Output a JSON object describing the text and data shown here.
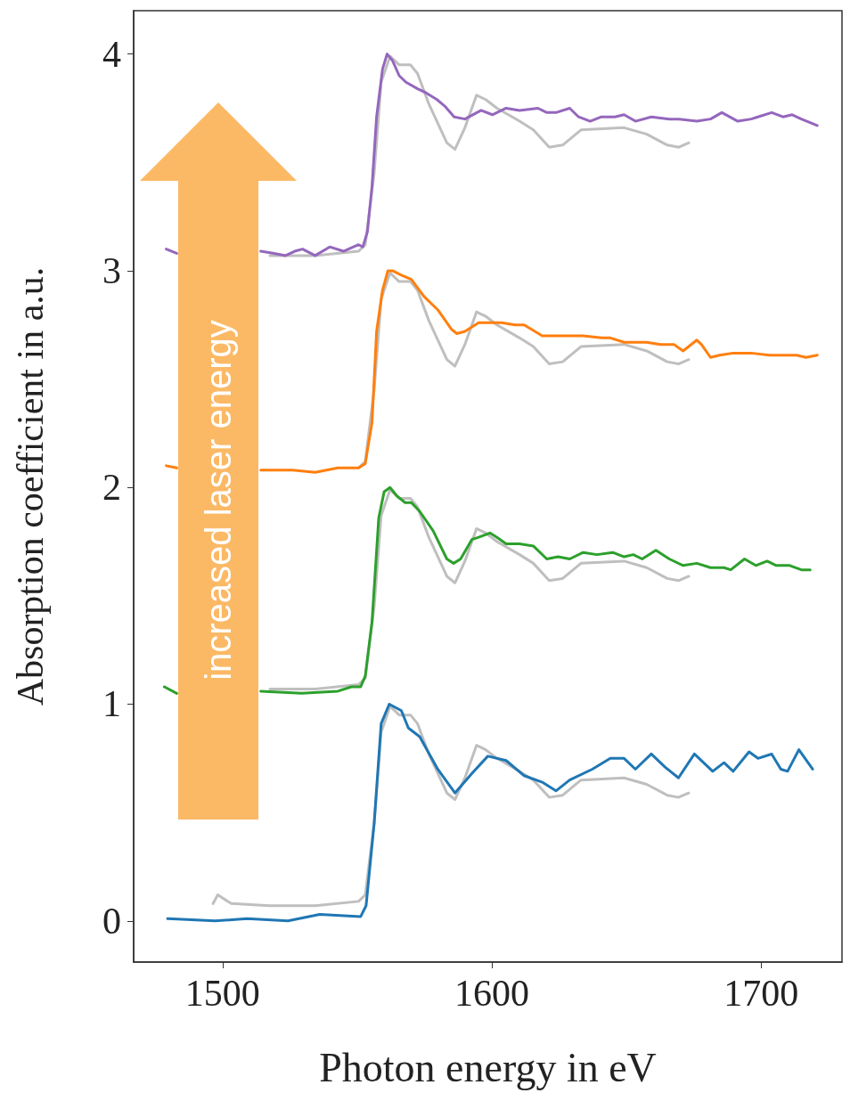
{
  "chart_data": {
    "type": "line",
    "xlabel": "Photon energy in eV",
    "ylabel": "Absorption coefficient in a.u.",
    "xlim": [
      1467,
      1730
    ],
    "ylim": [
      -0.19,
      4.2
    ],
    "xticks": [
      1500,
      1600,
      1700
    ],
    "yticks": [
      0,
      1,
      2,
      3,
      4
    ],
    "grid": false,
    "marker": "none",
    "line_style": "solid",
    "annotations": [
      "increased laser energy"
    ],
    "series": [
      {
        "color": "#bfbfbf",
        "x": [
          1496.5,
          1498.2,
          1503.2,
          1517.6,
          1534.4,
          1550.5,
          1553.0,
          1556.3,
          1558.9,
          1562.2,
          1565.6,
          1569.8,
          1572.4,
          1576.6,
          1583.3,
          1586.3,
          1590.0,
          1594.3,
          1597.7,
          1601.9,
          1610.3,
          1615.4,
          1621.3,
          1626.3,
          1633.1,
          1649.1,
          1657.5,
          1665.1,
          1669.3,
          1673.1
        ],
        "values": [
          0.08,
          0.12,
          0.08,
          0.07,
          0.07,
          0.09,
          0.12,
          0.45,
          0.87,
          0.99,
          0.95,
          0.95,
          0.91,
          0.77,
          0.59,
          0.56,
          0.66,
          0.81,
          0.79,
          0.75,
          0.69,
          0.65,
          0.57,
          0.58,
          0.65,
          0.66,
          0.63,
          0.58,
          0.57,
          0.59
        ]
      },
      {
        "color": "#bfbfbf",
        "x": [
          1517.6,
          1534.4,
          1550.5,
          1553.0,
          1556.3,
          1558.9,
          1562.2,
          1565.6,
          1569.8,
          1572.4,
          1576.6,
          1583.3,
          1586.3,
          1590.0,
          1594.3,
          1597.7,
          1601.9,
          1610.3,
          1615.4,
          1621.3,
          1626.3,
          1633.1,
          1649.1,
          1657.5,
          1665.1,
          1669.3,
          1673.1
        ],
        "values": [
          1.07,
          1.07,
          1.09,
          1.12,
          1.45,
          1.87,
          1.99,
          1.95,
          1.95,
          1.91,
          1.77,
          1.59,
          1.56,
          1.66,
          1.81,
          1.79,
          1.75,
          1.69,
          1.65,
          1.57,
          1.58,
          1.65,
          1.66,
          1.63,
          1.58,
          1.57,
          1.59
        ]
      },
      {
        "color": "#bfbfbf",
        "x": [
          1550.5,
          1553.0,
          1556.3,
          1558.9,
          1562.2,
          1565.6,
          1569.8,
          1572.4,
          1576.6,
          1583.3,
          1586.3,
          1590.0,
          1594.3,
          1597.7,
          1601.9,
          1610.3,
          1615.4,
          1621.3,
          1626.3,
          1633.1,
          1649.1,
          1657.5,
          1665.1,
          1669.3,
          1673.1
        ],
        "values": [
          2.09,
          2.12,
          2.45,
          2.87,
          2.99,
          2.95,
          2.95,
          2.91,
          2.77,
          2.59,
          2.56,
          2.66,
          2.81,
          2.79,
          2.75,
          2.69,
          2.65,
          2.57,
          2.58,
          2.65,
          2.66,
          2.63,
          2.58,
          2.57,
          2.59
        ]
      },
      {
        "color": "#bfbfbf",
        "x": [
          1517.6,
          1534.4,
          1550.5,
          1553.0,
          1556.3,
          1558.9,
          1562.2,
          1565.6,
          1569.8,
          1572.4,
          1576.6,
          1583.3,
          1586.3,
          1590.0,
          1594.3,
          1597.7,
          1601.9,
          1610.3,
          1615.4,
          1621.3,
          1626.3,
          1633.1,
          1649.1,
          1657.5,
          1665.1,
          1669.3,
          1673.1
        ],
        "values": [
          3.07,
          3.07,
          3.09,
          3.12,
          3.45,
          3.87,
          3.99,
          3.95,
          3.95,
          3.91,
          3.77,
          3.59,
          3.56,
          3.66,
          3.81,
          3.79,
          3.75,
          3.69,
          3.65,
          3.57,
          3.58,
          3.65,
          3.66,
          3.63,
          3.58,
          3.57,
          3.59
        ]
      },
      {
        "color": "#1f77b4",
        "x": [
          1479.6,
          1497.3,
          1509.1,
          1524.3,
          1536.1,
          1551.3,
          1553.3,
          1556.3,
          1558.9,
          1561.9,
          1566.4,
          1569.0,
          1573.2,
          1579.9,
          1586.3,
          1592.6,
          1598.5,
          1605.3,
          1612.0,
          1618.7,
          1623.8,
          1628.9,
          1637.3,
          1644.0,
          1649.1,
          1653.3,
          1659.2,
          1664.3,
          1669.3,
          1675.2,
          1682.0,
          1686.2,
          1689.6,
          1695.5,
          1698.8,
          1703.9,
          1707.3,
          1709.8,
          1714.0,
          1719.1
        ],
        "values": [
          0.01,
          0.0,
          0.01,
          0.0,
          0.03,
          0.02,
          0.07,
          0.45,
          0.91,
          1.0,
          0.97,
          0.89,
          0.85,
          0.7,
          0.59,
          0.68,
          0.76,
          0.74,
          0.67,
          0.64,
          0.6,
          0.65,
          0.7,
          0.75,
          0.75,
          0.7,
          0.77,
          0.71,
          0.66,
          0.77,
          0.69,
          0.73,
          0.69,
          0.78,
          0.75,
          0.77,
          0.7,
          0.69,
          0.79,
          0.7
        ]
      },
      {
        "color": "#2ca02c",
        "x": [
          1478.4,
          1483.0,
          1498,
          1514.2,
          1529.4,
          1542.8,
          1547.9,
          1551.3,
          1553.0,
          1555.5,
          1558.0,
          1560.0,
          1562.2,
          1564.8,
          1567.8,
          1570.1,
          1573.2,
          1578.2,
          1583.3,
          1585.8,
          1588.4,
          1592.6,
          1595.1,
          1599.3,
          1601.9,
          1605.3,
          1610.3,
          1615.4,
          1620.4,
          1624.6,
          1628.9,
          1633.9,
          1639.0,
          1644.9,
          1649.1,
          1652.5,
          1655.8,
          1660.9,
          1665.9,
          1671.0,
          1676.1,
          1681.2,
          1686.2,
          1688.7,
          1693.8,
          1698.0,
          1702.2,
          1705.6,
          1710.6,
          1714.9,
          1718.2
        ],
        "values": [
          1.08,
          1.05,
          null,
          1.06,
          1.05,
          1.06,
          1.08,
          1.08,
          1.13,
          1.38,
          1.86,
          1.98,
          2.0,
          1.96,
          1.93,
          1.93,
          1.89,
          1.8,
          1.67,
          1.65,
          1.67,
          1.76,
          1.77,
          1.79,
          1.77,
          1.74,
          1.74,
          1.73,
          1.67,
          1.68,
          1.67,
          1.7,
          1.69,
          1.7,
          1.68,
          1.69,
          1.67,
          1.71,
          1.67,
          1.64,
          1.65,
          1.63,
          1.63,
          1.62,
          1.67,
          1.64,
          1.66,
          1.64,
          1.64,
          1.62,
          1.62
        ]
      },
      {
        "color": "#ff7f0e",
        "x": [
          1479.1,
          1483.0,
          1498,
          1514.2,
          1526.0,
          1534.4,
          1542.8,
          1550.5,
          1553.0,
          1555.5,
          1557.2,
          1559.4,
          1561.4,
          1563.1,
          1566.4,
          1570.1,
          1574.9,
          1579.9,
          1585.0,
          1587.0,
          1590.0,
          1595.1,
          1600.2,
          1603.6,
          1608.6,
          1612.0,
          1618.7,
          1623.8,
          1630.5,
          1633.9,
          1640.7,
          1644.0,
          1649.1,
          1657.5,
          1662.6,
          1667.6,
          1671.0,
          1676.1,
          1677.8,
          1681.2,
          1684.5,
          1689.6,
          1696.3,
          1703.1,
          1708.1,
          1713.2,
          1716.6,
          1720.8
        ],
        "values": [
          2.1,
          2.09,
          null,
          2.08,
          2.08,
          2.07,
          2.09,
          2.09,
          2.11,
          2.3,
          2.72,
          2.91,
          3.0,
          3.0,
          2.98,
          2.96,
          2.88,
          2.82,
          2.73,
          2.71,
          2.72,
          2.76,
          2.76,
          2.76,
          2.75,
          2.75,
          2.7,
          2.7,
          2.7,
          2.7,
          2.69,
          2.69,
          2.67,
          2.67,
          2.66,
          2.66,
          2.63,
          2.68,
          2.66,
          2.6,
          2.61,
          2.62,
          2.62,
          2.61,
          2.61,
          2.61,
          2.6,
          2.61
        ]
      },
      {
        "color": "#9467bd",
        "x": [
          1479.1,
          1483.0,
          1498,
          1514.2,
          1519.2,
          1523.4,
          1526.8,
          1529.7,
          1534.4,
          1539.8,
          1544.9,
          1550.5,
          1552.1,
          1553.8,
          1555.5,
          1557.2,
          1559.4,
          1561.1,
          1563.1,
          1565.6,
          1568.1,
          1572.4,
          1575.7,
          1579.6,
          1582.5,
          1586.0,
          1590.0,
          1596.0,
          1600.2,
          1605.3,
          1610.3,
          1617.1,
          1620.4,
          1623.8,
          1628.9,
          1632.2,
          1636.5,
          1640.7,
          1645.7,
          1649.1,
          1653.3,
          1659.2,
          1665.9,
          1669.3,
          1676.1,
          1681.2,
          1685.4,
          1691.3,
          1696.3,
          1698.8,
          1703.9,
          1708.1,
          1711.5,
          1714.9,
          1720.8
        ],
        "values": [
          3.1,
          3.08,
          null,
          3.09,
          3.08,
          3.07,
          3.09,
          3.1,
          3.07,
          3.11,
          3.09,
          3.12,
          3.11,
          3.18,
          3.39,
          3.71,
          3.93,
          4.0,
          3.97,
          3.9,
          3.87,
          3.84,
          3.82,
          3.79,
          3.76,
          3.71,
          3.7,
          3.74,
          3.72,
          3.75,
          3.74,
          3.75,
          3.73,
          3.73,
          3.75,
          3.71,
          3.69,
          3.71,
          3.71,
          3.72,
          3.69,
          3.71,
          3.7,
          3.7,
          3.69,
          3.7,
          3.73,
          3.69,
          3.7,
          3.71,
          3.73,
          3.71,
          3.72,
          3.7,
          3.67
        ]
      }
    ]
  }
}
